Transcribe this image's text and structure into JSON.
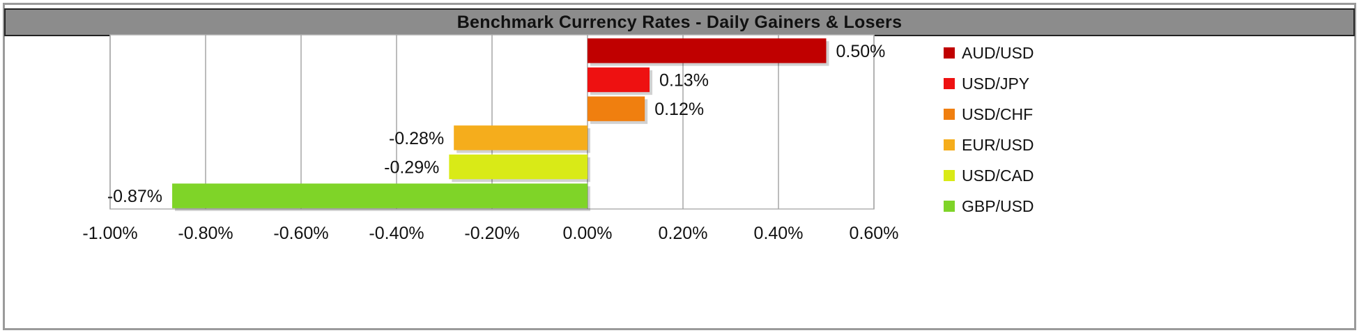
{
  "chart_data": {
    "type": "bar",
    "orientation": "horizontal",
    "title": "Benchmark Currency Rates - Daily Gainers & Losers",
    "xlabel": "",
    "ylabel": "",
    "xlim": [
      -1.0,
      0.6
    ],
    "xticks": [
      -1.0,
      -0.8,
      -0.6,
      -0.4,
      -0.2,
      0.0,
      0.2,
      0.4,
      0.6
    ],
    "xtick_labels": [
      "-1.00%",
      "-0.80%",
      "-0.60%",
      "-0.40%",
      "-0.20%",
      "0.00%",
      "0.20%",
      "0.40%",
      "0.60%"
    ],
    "grid": "vertical",
    "legend_position": "right",
    "categories": [
      "AUD/USD",
      "USD/JPY",
      "USD/CHF",
      "EUR/USD",
      "USD/CAD",
      "GBP/USD"
    ],
    "values": [
      0.5,
      0.13,
      0.12,
      -0.28,
      -0.29,
      -0.87
    ],
    "value_labels": [
      "0.50%",
      "0.13%",
      "0.12%",
      "-0.28%",
      "-0.29%",
      "-0.87%"
    ],
    "colors": [
      "#c00000",
      "#ee1111",
      "#f07f0f",
      "#f5ad1c",
      "#d9ea17",
      "#7fd428"
    ]
  }
}
